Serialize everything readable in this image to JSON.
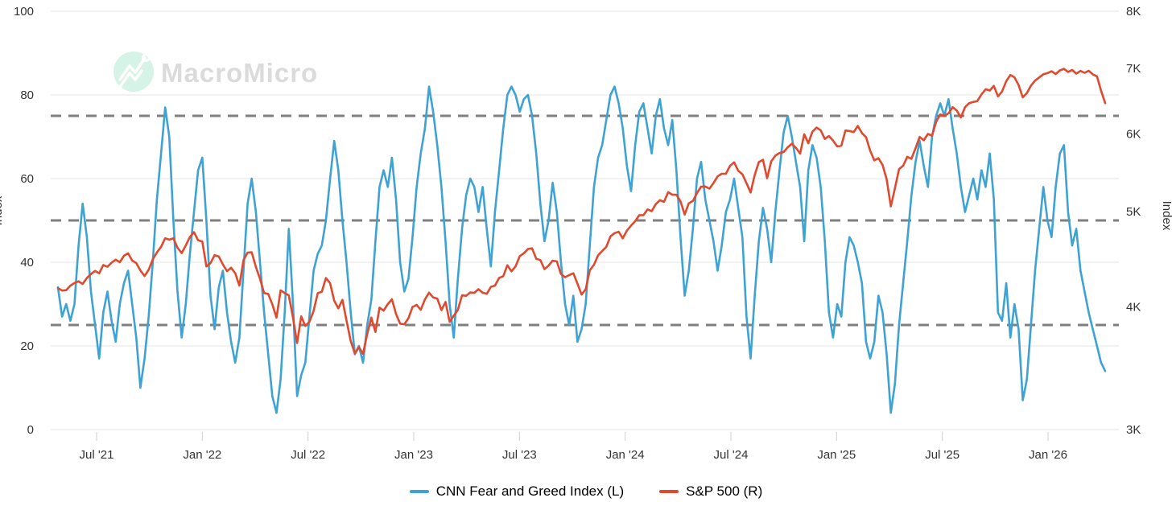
{
  "watermark": {
    "brand": "MacroMicro"
  },
  "legend": {
    "items": [
      {
        "label": "CNN Fear and Greed Index (L)",
        "color": "#3EA2D4"
      },
      {
        "label": "S&P 500 (R)",
        "color": "#E0492E"
      }
    ]
  },
  "chart_data": {
    "type": "line",
    "title": "",
    "left_axis": {
      "label": "Index",
      "ticks": [
        0,
        20,
        40,
        60,
        80,
        100
      ],
      "range": [
        0,
        100
      ]
    },
    "right_axis": {
      "label": "Index",
      "ticks": [
        "8K",
        "7K",
        "6K",
        "5K",
        "4K",
        "3K"
      ],
      "tick_values": [
        8000,
        7000,
        6000,
        5000,
        4000,
        3000
      ],
      "scale": "log",
      "range": [
        3000,
        8000
      ]
    },
    "x_axis": {
      "tick_labels": [
        "Jul '21",
        "Jan '22",
        "Jul '22",
        "Jan '23",
        "Jul '23",
        "Jan '24",
        "Jul '24",
        "Jan '25",
        "Jul '25",
        "Jan '26"
      ],
      "start": "May '21",
      "end": "Apr '26"
    },
    "threshold_lines": [
      25,
      50,
      75
    ],
    "grid": true,
    "legend_position": "bottom",
    "series": [
      {
        "name": "CNN Fear and Greed Index (L)",
        "axis": "left",
        "color": "#3EA2D4",
        "values": [
          34,
          27,
          30,
          26,
          30,
          44,
          54,
          46,
          33,
          25,
          17,
          28,
          33,
          26,
          21,
          30,
          35,
          38,
          30,
          22,
          10,
          17,
          27,
          40,
          55,
          66,
          77,
          70,
          50,
          33,
          22,
          30,
          42,
          52,
          62,
          65,
          50,
          32,
          24,
          34,
          38,
          28,
          21,
          16,
          22,
          38,
          54,
          60,
          52,
          40,
          28,
          18,
          8,
          4,
          12,
          28,
          48,
          30,
          8,
          13,
          16,
          27,
          38,
          42,
          44,
          50,
          60,
          69,
          62,
          50,
          40,
          28,
          18,
          20,
          16,
          25,
          31,
          45,
          58,
          62,
          58,
          65,
          55,
          40,
          33,
          36,
          46,
          58,
          66,
          72,
          82,
          76,
          68,
          58,
          45,
          30,
          22,
          36,
          48,
          56,
          60,
          58,
          52,
          58,
          48,
          39,
          52,
          62,
          72,
          80,
          82,
          80,
          76,
          79,
          80,
          75,
          66,
          54,
          45,
          50,
          59,
          52,
          40,
          30,
          25,
          32,
          21,
          24,
          30,
          44,
          58,
          65,
          68,
          74,
          80,
          82,
          78,
          72,
          63,
          57,
          68,
          76,
          78,
          72,
          66,
          75,
          79,
          72,
          68,
          74,
          62,
          46,
          32,
          38,
          48,
          60,
          64,
          55,
          50,
          45,
          38,
          44,
          52,
          55,
          60,
          53,
          46,
          27,
          17,
          32,
          45,
          53,
          48,
          40,
          52,
          62,
          71,
          75,
          70,
          64,
          58,
          45,
          62,
          68,
          65,
          58,
          45,
          28,
          22,
          30,
          27,
          40,
          46,
          44,
          40,
          35,
          21,
          17,
          21,
          32,
          28,
          18,
          4,
          11,
          25,
          35,
          45,
          56,
          64,
          69,
          63,
          58,
          70,
          75,
          78,
          75,
          79,
          72,
          66,
          58,
          52,
          56,
          60,
          55,
          62,
          58,
          66,
          55,
          28,
          26,
          35,
          22,
          30,
          24,
          7,
          12,
          25,
          38,
          48,
          58,
          50,
          46,
          58,
          66,
          68,
          52,
          44,
          48,
          38,
          33,
          28,
          24,
          20,
          16,
          14
        ]
      },
      {
        "name": "S&P 500 (R)",
        "axis": "right",
        "color": "#E0492E",
        "values": [
          4180,
          4156,
          4160,
          4204,
          4230,
          4247,
          4221,
          4280,
          4320,
          4352,
          4327,
          4412,
          4395,
          4437,
          4468,
          4442,
          4509,
          4535,
          4459,
          4433,
          4357,
          4300,
          4363,
          4471,
          4545,
          4605,
          4698,
          4683,
          4698,
          4595,
          4538,
          4620,
          4712,
          4766,
          4677,
          4663,
          4398,
          4432,
          4516,
          4501,
          4419,
          4349,
          4385,
          4329,
          4204,
          4463,
          4543,
          4546,
          4393,
          4272,
          4132,
          4123,
          4024,
          3901,
          4158,
          4132,
          4109,
          3900,
          3675,
          3912,
          3825,
          3863,
          3962,
          4130,
          4145,
          4280,
          4228,
          4058,
          3986,
          4067,
          3873,
          3693,
          3586,
          3640,
          3583,
          3753,
          3901,
          3771,
          3993,
          3965,
          4026,
          4072,
          3934,
          3845,
          3840,
          3895,
          3999,
          4019,
          3973,
          4071,
          4136,
          4090,
          4079,
          3970,
          4046,
          3862,
          3917,
          3971,
          4109,
          4105,
          4138,
          4134,
          4169,
          4136,
          4124,
          4192,
          4205,
          4282,
          4299,
          4410,
          4348,
          4399,
          4505,
          4536,
          4582,
          4589,
          4478,
          4464,
          4370,
          4406,
          4458,
          4450,
          4320,
          4288,
          4309,
          4328,
          4224,
          4117,
          4169,
          4358,
          4415,
          4514,
          4560,
          4604,
          4719,
          4755,
          4770,
          4697,
          4784,
          4840,
          4891,
          4959,
          4959,
          5027,
          5006,
          5089,
          5137,
          5117,
          5234,
          5204,
          5204,
          5123,
          4967,
          5100,
          5128,
          5223,
          5303,
          5305,
          5278,
          5347,
          5432,
          5465,
          5465,
          5567,
          5615,
          5505,
          5459,
          5346,
          5230,
          5450,
          5617,
          5648,
          5408,
          5626,
          5702,
          5738,
          5751,
          5815,
          5865,
          5808,
          5729,
          5996,
          5870,
          6032,
          6090,
          6051,
          5930,
          5971,
          5907,
          5827,
          5837,
          6049,
          6041,
          6026,
          6115,
          6013,
          5955,
          5770,
          5639,
          5668,
          5581,
          5396,
          5062,
          5283,
          5525,
          5569,
          5687,
          5660,
          5803,
          5958,
          5912,
          6000,
          5977,
          6173,
          6280,
          6260,
          6297,
          6389,
          6339,
          6238,
          6389,
          6450,
          6467,
          6482,
          6584,
          6664,
          6644,
          6716,
          6553,
          6629,
          6792,
          6890,
          6852,
          6729,
          6538,
          6603,
          6720,
          6800,
          6850,
          6902,
          6920,
          6950,
          6905,
          6964,
          6990,
          6940,
          6972,
          6912,
          6955,
          6925,
          6958,
          6900,
          6868,
          6640,
          6450
        ]
      }
    ]
  }
}
